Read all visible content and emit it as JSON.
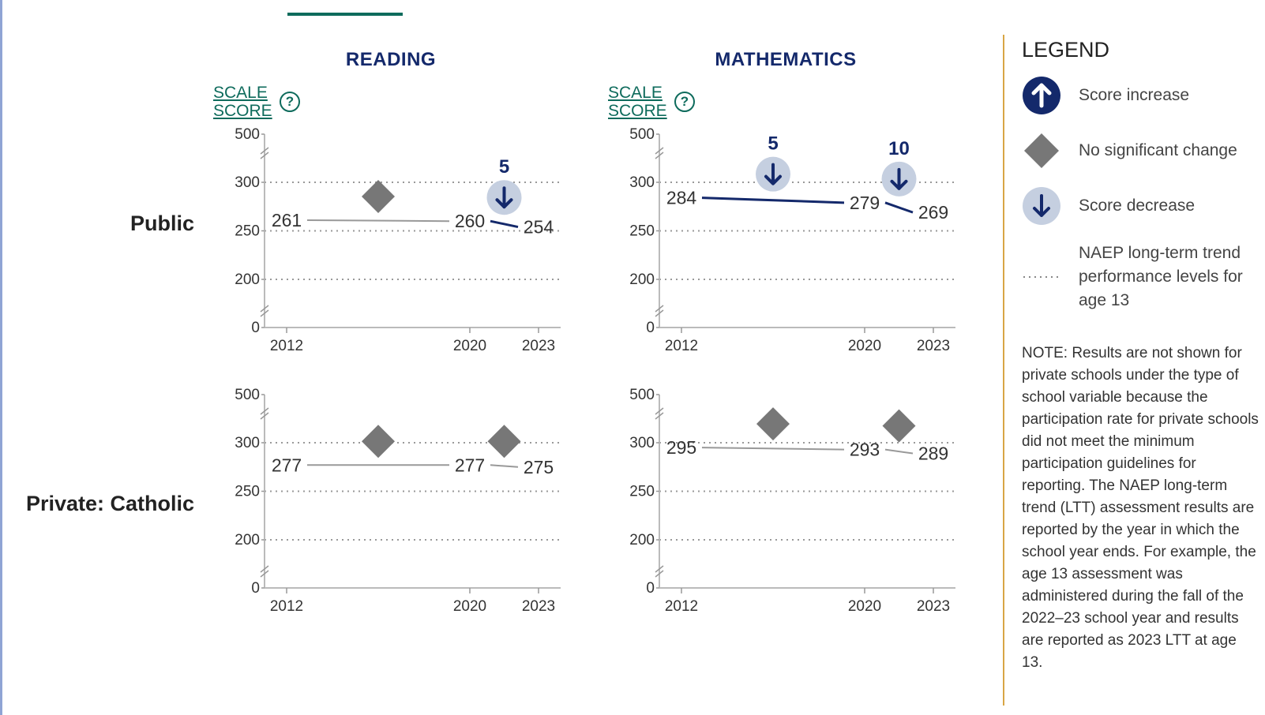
{
  "columns": [
    {
      "title": "READING",
      "scale_label_1": "SCALE",
      "scale_label_2": "SCORE",
      "help_glyph": "?"
    },
    {
      "title": "MATHEMATICS",
      "scale_label_1": "SCALE",
      "scale_label_2": "SCORE",
      "help_glyph": "?"
    }
  ],
  "rows": [
    {
      "label": "Public"
    },
    {
      "label": "Private: Catholic"
    }
  ],
  "legend": {
    "title": "LEGEND",
    "items": [
      {
        "icon": "arrow-up-icon",
        "label": "Score increase"
      },
      {
        "icon": "diamond-icon",
        "label": "No significant change"
      },
      {
        "icon": "arrow-down-icon",
        "label": "Score decrease"
      },
      {
        "icon": "dotted-line-icon",
        "label": "NAEP long-term trend performance levels for age 13"
      }
    ],
    "note": "NOTE: Results are not shown for private schools under the type of school variable because the participation rate for private schools did not meet the minimum participation guidelines for reporting. The NAEP long-term trend (LTT) assessment results are reported by the year in which the school year ends. For example, the age 13 assessment was administered during the fall of the 2022–23 school year and results are reported as 2023 LTT at age 13."
  },
  "colors": {
    "navy": "#14296b",
    "teal": "#0e6b5c",
    "gray_marker": "#777777",
    "decrease_bg": "#c5cfe0",
    "legend_border": "#d8a645"
  },
  "chart_data": [
    {
      "type": "line",
      "subject": "READING",
      "group": "Public",
      "x": [
        2012,
        2020,
        2023
      ],
      "y": [
        261,
        260,
        254
      ],
      "y_ticks": [
        "0",
        "200",
        "250",
        "300",
        "500"
      ],
      "x_ticks": [
        "2012",
        "2020",
        "2023"
      ],
      "performance_levels": [
        200,
        250,
        300
      ],
      "segments": [
        {
          "from": 2012,
          "to": 2020,
          "status": "no significant change"
        },
        {
          "from": 2020,
          "to": 2023,
          "status": "decrease",
          "change": "5"
        }
      ]
    },
    {
      "type": "line",
      "subject": "MATHEMATICS",
      "group": "Public",
      "x": [
        2012,
        2020,
        2023
      ],
      "y": [
        284,
        279,
        269
      ],
      "y_ticks": [
        "0",
        "200",
        "250",
        "300",
        "500"
      ],
      "x_ticks": [
        "2012",
        "2020",
        "2023"
      ],
      "performance_levels": [
        200,
        250,
        300
      ],
      "segments": [
        {
          "from": 2012,
          "to": 2020,
          "status": "decrease",
          "change": "5"
        },
        {
          "from": 2020,
          "to": 2023,
          "status": "decrease",
          "change": "10"
        }
      ]
    },
    {
      "type": "line",
      "subject": "READING",
      "group": "Private: Catholic",
      "x": [
        2012,
        2020,
        2023
      ],
      "y": [
        277,
        277,
        275
      ],
      "y_ticks": [
        "0",
        "200",
        "250",
        "300",
        "500"
      ],
      "x_ticks": [
        "2012",
        "2020",
        "2023"
      ],
      "performance_levels": [
        200,
        250,
        300
      ],
      "segments": [
        {
          "from": 2012,
          "to": 2020,
          "status": "no significant change"
        },
        {
          "from": 2020,
          "to": 2023,
          "status": "no significant change"
        }
      ]
    },
    {
      "type": "line",
      "subject": "MATHEMATICS",
      "group": "Private: Catholic",
      "x": [
        2012,
        2020,
        2023
      ],
      "y": [
        295,
        293,
        289
      ],
      "y_ticks": [
        "0",
        "200",
        "250",
        "300",
        "500"
      ],
      "x_ticks": [
        "2012",
        "2020",
        "2023"
      ],
      "performance_levels": [
        200,
        250,
        300
      ],
      "segments": [
        {
          "from": 2012,
          "to": 2020,
          "status": "no significant change"
        },
        {
          "from": 2020,
          "to": 2023,
          "status": "no significant change"
        }
      ]
    }
  ]
}
